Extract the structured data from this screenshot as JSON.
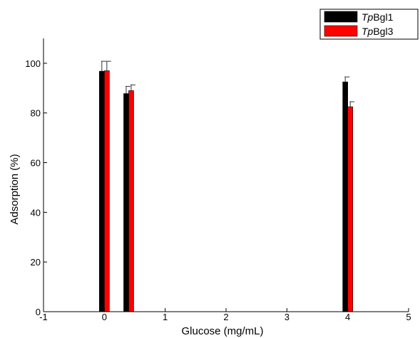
{
  "chart_data": {
    "type": "bar",
    "title": "",
    "xlabel": "Glucose (mg/mL)",
    "ylabel": "Adsorption (%)",
    "xlim": [
      -1,
      5
    ],
    "ylim": [
      0,
      110
    ],
    "x_ticks": [
      "-1",
      "0",
      "1",
      "2",
      "3",
      "4",
      "5"
    ],
    "y_ticks": [
      "0",
      "20",
      "40",
      "60",
      "80",
      "100"
    ],
    "x": [
      0,
      0.4,
      4
    ],
    "legend_position": "top-right",
    "series": [
      {
        "name": "TpBgl1",
        "name_italic": "Tp",
        "name_rest": "Bgl1",
        "color": "#000000",
        "values": [
          96.8,
          87.8,
          92.5
        ],
        "errors": [
          4.0,
          2.9,
          2.0
        ]
      },
      {
        "name": "TpBgl3",
        "name_italic": "Tp",
        "name_rest": "Bgl3",
        "color": "#ff0000",
        "values": [
          97.0,
          89.0,
          82.5
        ],
        "errors": [
          3.8,
          2.3,
          2.0
        ]
      }
    ]
  }
}
